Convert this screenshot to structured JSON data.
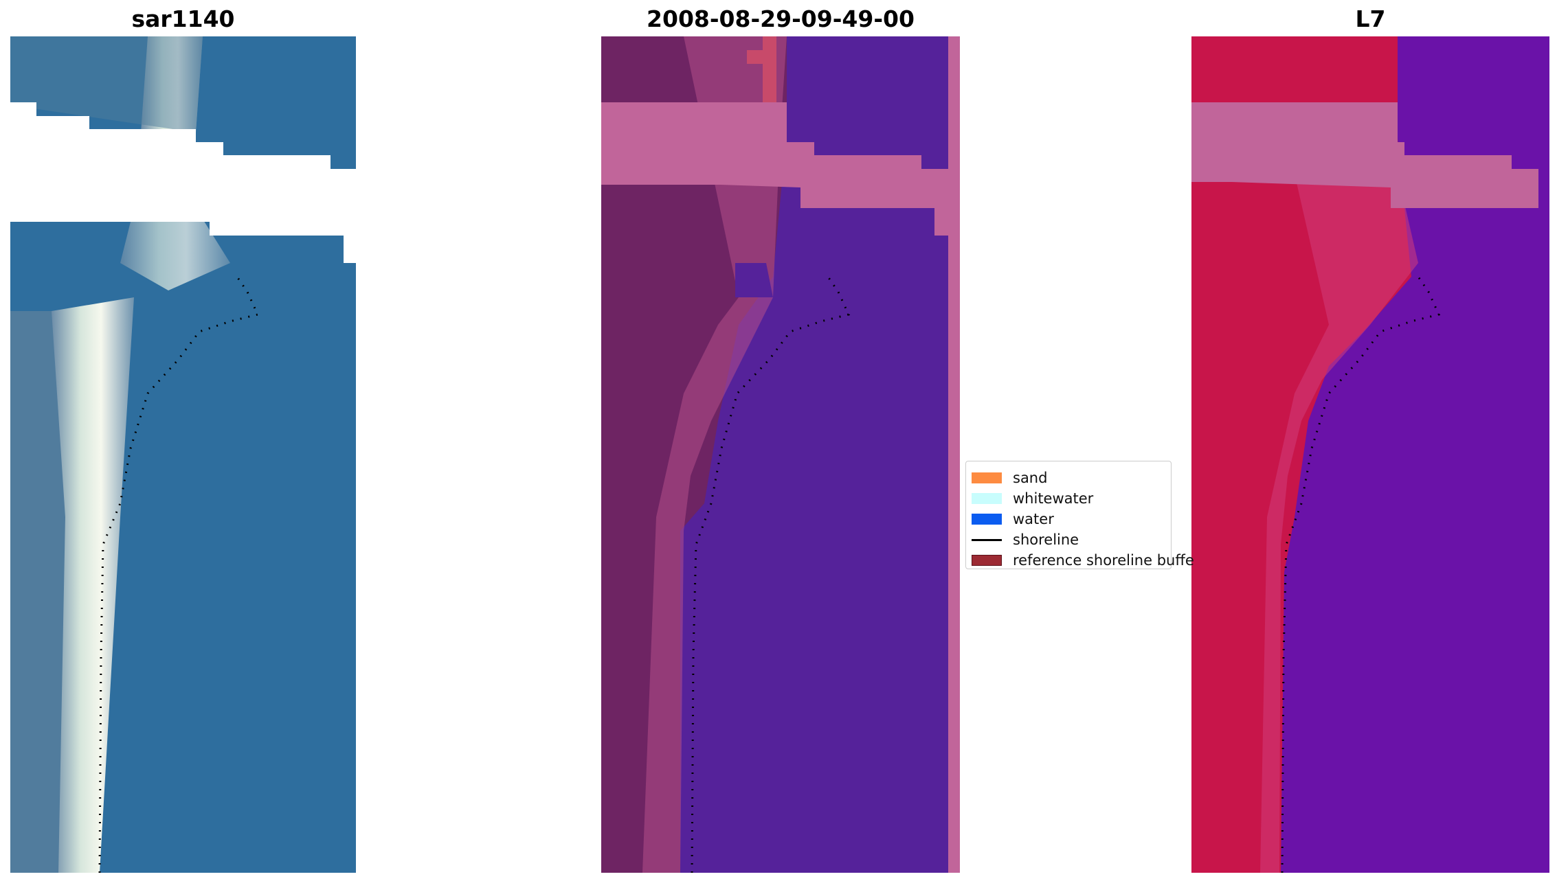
{
  "panels": {
    "left_title": "sar1140",
    "middle_title": "2008-08-29-09-49-00",
    "right_title": "L7"
  },
  "legend": {
    "items": [
      {
        "label": "sand",
        "color": "#fd8b41",
        "kind": "patch"
      },
      {
        "label": "whitewater",
        "color": "#c8fdfd",
        "kind": "patch"
      },
      {
        "label": "water",
        "color": "#0b5cf0",
        "kind": "patch"
      },
      {
        "label": "shoreline",
        "color": "#000000",
        "kind": "line"
      },
      {
        "label": "reference shoreline buffe",
        "color": "#9c2a33",
        "kind": "patch"
      }
    ]
  },
  "colors": {
    "rgb_water": "#2e6e9e",
    "rgb_sand": "#eef2ea",
    "classified_water": "#55229a",
    "classified_land": "#6e2463",
    "classified_buffer_overlay": "#c1659a",
    "index_land": "#c8154a",
    "index_water": "#6a12a8",
    "shoreline": "#000000"
  }
}
